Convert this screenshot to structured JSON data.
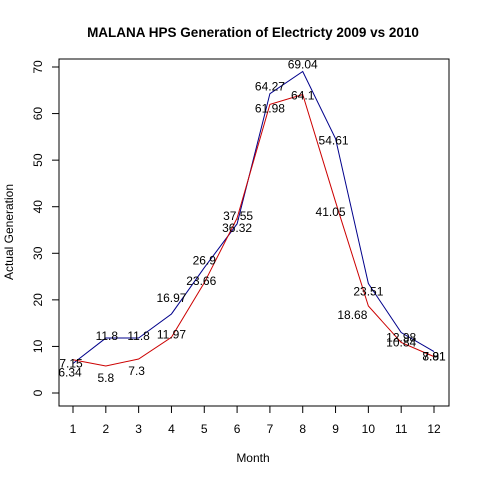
{
  "chart_data": {
    "type": "line",
    "title": "MALANA  HPS Generation of Electricty 2009 vs 2010",
    "xlabel": "Month",
    "ylabel": "Actual Generation",
    "x": [
      1,
      2,
      3,
      4,
      5,
      6,
      7,
      8,
      9,
      10,
      11,
      12
    ],
    "xlim": [
      1,
      12
    ],
    "ylim": [
      0,
      70
    ],
    "yticks": [
      0,
      10,
      20,
      30,
      40,
      50,
      60,
      70
    ],
    "grid": false,
    "legend": "none",
    "series": [
      {
        "color": "#00008b",
        "values": [
          6.34,
          11.8,
          11.8,
          16.97,
          26.9,
          36.32,
          64.27,
          69.04,
          54.61,
          23.51,
          12.98,
          8.91
        ],
        "labels": [
          "6.34",
          "11.8",
          "11.8",
          "16.97",
          "26.9",
          "36.32",
          "64.27",
          "69.04",
          "54.61",
          "23.51",
          "12.98",
          "8.91"
        ]
      },
      {
        "color": "#cc0000",
        "values": [
          7.15,
          5.8,
          7.3,
          11.97,
          23.66,
          37.55,
          61.98,
          64.1,
          41.05,
          18.68,
          10.84,
          7.81
        ],
        "labels": [
          "7.15",
          "5.8",
          "7.3",
          "11.97",
          "23.66",
          "37.55",
          "61.98",
          "64.1",
          "41.05",
          "18.68",
          "10.84",
          "7.81"
        ]
      }
    ]
  }
}
